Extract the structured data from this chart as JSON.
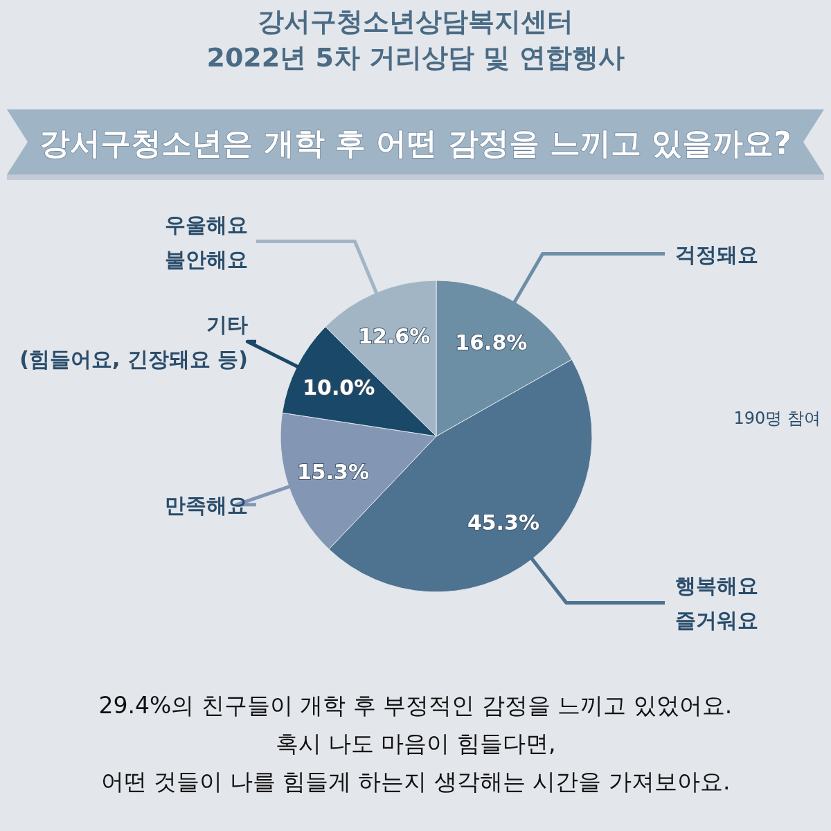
{
  "chart_data": {
    "type": "pie",
    "title": "강서구청소년상담복지센터\n2022년 5차 거리상담 및 연합행사",
    "subtitle": "강서구청소년은 개학 후 어떤 감정을 느끼고 있을까요?",
    "categories": [
      "걱정돼요",
      "행복해요\n즐거워요",
      "만족해요",
      "기타\n(힘들어요, 긴장돼요 등)",
      "우울해요\n불안해요"
    ],
    "values": [
      16.8,
      45.3,
      15.3,
      10.0,
      12.6
    ],
    "colors": [
      "#6d8fa6",
      "#4d7391",
      "#8397b5",
      "#1a4868",
      "#a1b5c5"
    ],
    "value_labels": [
      "16.8%",
      "45.3%",
      "15.3%",
      "10.0%",
      "12.6%"
    ],
    "annotations": [
      "190명 참여",
      "29.4%의 친구들이 개학 후 부정적인 감정을 느끼고 있었어요.\n혹시 나도 마음이 힘들다면,\n어떤 것들이 나를 힘들게 하는지 생각해는 시간을 가져보아요."
    ]
  }
}
